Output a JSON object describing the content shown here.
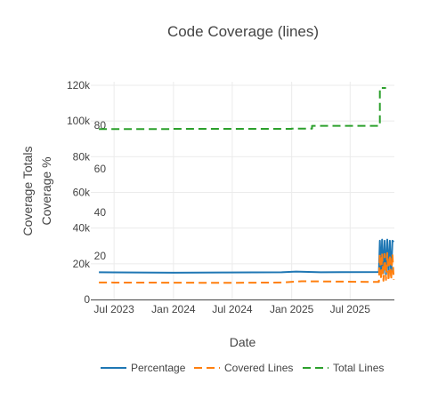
{
  "chart_data": {
    "type": "line",
    "title": "Code Coverage (lines)",
    "xlabel": "Date",
    "ylabel_left": "Coverage Totals",
    "ylabel_right": "Coverage %",
    "x_ticks": [
      "Jul 2023",
      "Jan 2024",
      "Jul 2024",
      "Jan 2025",
      "Jul 2025"
    ],
    "y_ticks_totals": [
      "0",
      "20k",
      "40k",
      "60k",
      "80k",
      "100k",
      "120k"
    ],
    "y_ticks_percent": [
      "20",
      "40",
      "60",
      "80"
    ],
    "ylim_totals": [
      0,
      122000
    ],
    "ylim_percent": [
      0,
      100
    ],
    "grid": true,
    "legend_position": "bottom",
    "series": [
      {
        "name": "Percentage",
        "axis": "percent",
        "color": "#1f77b4",
        "dash": "solid",
        "points": [
          [
            "2023-05-15",
            12.5
          ],
          [
            "2023-09-01",
            12.4
          ],
          [
            "2024-01-01",
            12.3
          ],
          [
            "2024-06-01",
            12.4
          ],
          [
            "2024-12-01",
            12.5
          ],
          [
            "2025-01-15",
            12.8
          ],
          [
            "2025-04-01",
            12.5
          ],
          [
            "2025-09-28",
            12.6
          ],
          [
            "2025-10-01",
            27
          ],
          [
            "2025-10-05",
            11
          ],
          [
            "2025-10-08",
            27.5
          ],
          [
            "2025-10-12",
            12
          ],
          [
            "2025-10-16",
            27
          ],
          [
            "2025-10-20",
            11.5
          ],
          [
            "2025-10-24",
            27.5
          ],
          [
            "2025-10-28",
            12
          ],
          [
            "2025-11-01",
            27
          ],
          [
            "2025-11-05",
            11
          ],
          [
            "2025-11-09",
            27
          ],
          [
            "2025-11-13",
            26.5
          ]
        ]
      },
      {
        "name": "Covered Lines",
        "axis": "totals",
        "color": "#ff7f0e",
        "dash": "dash",
        "points": [
          [
            "2023-05-15",
            9500
          ],
          [
            "2024-01-01",
            9400
          ],
          [
            "2024-06-01",
            9300
          ],
          [
            "2024-12-01",
            9500
          ],
          [
            "2025-02-01",
            10200
          ],
          [
            "2025-09-28",
            9800
          ],
          [
            "2025-10-01",
            25500
          ],
          [
            "2025-10-05",
            11000
          ],
          [
            "2025-10-08",
            26000
          ],
          [
            "2025-10-12",
            10500
          ],
          [
            "2025-10-16",
            25500
          ],
          [
            "2025-10-20",
            11000
          ],
          [
            "2025-10-24",
            26000
          ],
          [
            "2025-10-28",
            10500
          ],
          [
            "2025-11-01",
            25000
          ],
          [
            "2025-11-05",
            11000
          ],
          [
            "2025-11-09",
            25500
          ],
          [
            "2025-11-13",
            11000
          ]
        ]
      },
      {
        "name": "Total Lines",
        "axis": "totals",
        "color": "#2ca02c",
        "dash": "dash",
        "points": [
          [
            "2023-05-15",
            95500
          ],
          [
            "2024-01-01",
            95600
          ],
          [
            "2025-01-01",
            95700
          ],
          [
            "2025-03-01",
            95700
          ],
          [
            "2025-03-05",
            97300
          ],
          [
            "2025-09-28",
            97300
          ],
          [
            "2025-10-01",
            118500
          ],
          [
            "2025-10-20",
            118500
          ]
        ]
      }
    ]
  }
}
